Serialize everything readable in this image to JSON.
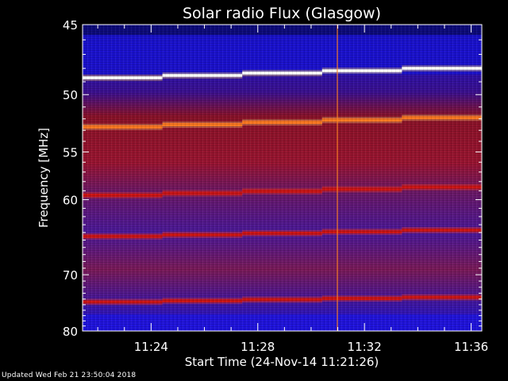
{
  "chart_data": {
    "type": "heatmap",
    "title": "Solar radio Flux (Glasgow)",
    "xlabel": "Start Time (24-Nov-14 11:21:26)",
    "ylabel": "Frequency [MHz]",
    "x_ticks": [
      "11:24",
      "11:28",
      "11:32",
      "11:36"
    ],
    "x_tick_minutes": [
      24,
      28,
      32,
      36
    ],
    "x_range_minutes": [
      21.43,
      36.4
    ],
    "y_ticks": [
      "45",
      "50",
      "55",
      "60",
      "70",
      "80"
    ],
    "y_tick_values": [
      45,
      50,
      55,
      60,
      70,
      80
    ],
    "y_range": [
      45,
      80
    ],
    "y_scale": "reciprocal",
    "y_inverted": true,
    "colormap": "black-blue-red-yellow-white",
    "emission_lines": [
      {
        "freq_start": 48.7,
        "freq_end": 48.0,
        "intensity": "white"
      },
      {
        "freq_start": 52.7,
        "freq_end": 51.9,
        "intensity": "orange"
      },
      {
        "freq_start": 59.5,
        "freq_end": 58.6,
        "intensity": "red"
      },
      {
        "freq_start": 64.5,
        "freq_end": 63.7,
        "intensity": "red"
      },
      {
        "freq_start": 74.5,
        "freq_end": 73.7,
        "intensity": "red"
      }
    ],
    "colors": {
      "background": "#000000",
      "deep_blue": "#1a10c8",
      "purple": "#5a1a9a",
      "red": "#b41414",
      "orange": "#ff6a10",
      "white": "#ffffff"
    }
  },
  "footer": {
    "updated": "Updated Wed Feb 21 23:50:04 2018"
  }
}
